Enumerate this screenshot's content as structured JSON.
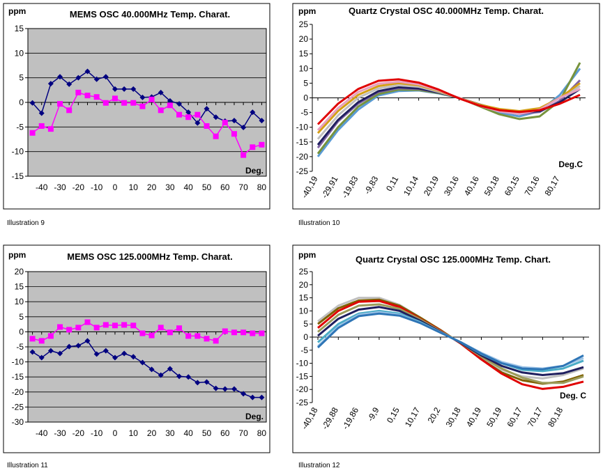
{
  "chart_data": [
    {
      "type": "line",
      "title": "MEMS OSC 40.000MHz Temp. Charat.",
      "ylabel": "ppm",
      "xlabel": "Deg.",
      "caption": "Illustration 9",
      "plot_background": "#c0c0c0",
      "grid": true,
      "categories": [
        null,
        "-40",
        null,
        "-30",
        null,
        "-20",
        null,
        "-10",
        null,
        "0",
        null,
        "10",
        null,
        "20",
        null,
        "30",
        null,
        "40",
        null,
        "50",
        null,
        "60",
        null,
        "70",
        null,
        "80"
      ],
      "ylim": [
        -15,
        15
      ],
      "yticks": [
        -15,
        -10,
        -5,
        0,
        5,
        10,
        15
      ],
      "series": [
        {
          "color": "#000080",
          "marker": "diamond",
          "values": [
            -0.1,
            -2.2,
            3.8,
            5.2,
            3.7,
            5.0,
            6.3,
            4.7,
            5.2,
            2.7,
            2.7,
            2.7,
            1.0,
            1.1,
            2.0,
            0.3,
            -0.3,
            -2.0,
            -4.2,
            -1.3,
            -3.0,
            -3.8,
            -3.7,
            -5.1,
            -2.0,
            -3.7
          ]
        },
        {
          "color": "#ff00ff",
          "marker": "square",
          "values": [
            -6.2,
            -4.8,
            -5.4,
            -0.3,
            -1.6,
            2.0,
            1.4,
            1.1,
            -0.1,
            0.8,
            -0.1,
            -0.1,
            -0.8,
            0.6,
            -1.6,
            -0.6,
            -2.5,
            -3.0,
            -2.5,
            -4.8,
            -6.9,
            -4.1,
            -6.4,
            -10.7,
            -9.1,
            -8.6
          ]
        }
      ]
    },
    {
      "type": "line",
      "title": "Quartz Crystal OSC 40.000MHz Temp. Charat.",
      "ylabel": "ppm",
      "xlabel": "Deg.C",
      "caption": "Illustration 10",
      "plot_background": "#ffffff",
      "grid": false,
      "rotate_labels": true,
      "categories": [
        "-40,19",
        "-29,91",
        "-19,83",
        "-9,83",
        "0,11",
        "10,14",
        "20,19",
        "30,16",
        "40,16",
        "50,18",
        "60,15",
        "70,16",
        "80,17",
        null
      ],
      "ylim": [
        -25,
        25
      ],
      "yticks": [
        -25,
        -20,
        -15,
        -10,
        -5,
        0,
        5,
        10,
        15,
        20,
        25
      ],
      "series": [
        {
          "color": "#5a9bd5",
          "values": [
            -20,
            -11,
            -4,
            0.8,
            2.3,
            2.5,
            1.5,
            0,
            -2.6,
            -5,
            -6.3,
            -4.5,
            1,
            10
          ]
        },
        {
          "color": "#77933c",
          "values": [
            -19,
            -10,
            -3,
            1.3,
            2.8,
            2.7,
            1.6,
            0,
            -2.8,
            -5.6,
            -7.2,
            -6.3,
            -1,
            12
          ]
        },
        {
          "color": "#8064a2",
          "values": [
            -17,
            -8,
            -2,
            2,
            3.3,
            3,
            1.8,
            0,
            -2.3,
            -4.3,
            -5.5,
            -4.8,
            -1,
            6
          ]
        },
        {
          "color": "#1f1f5f",
          "values": [
            -16,
            -7.5,
            -1.5,
            2.3,
            3.6,
            3.2,
            1.8,
            0,
            -2.2,
            -4,
            -5,
            -4.5,
            -1.5,
            3
          ]
        },
        {
          "color": "#bfbfbf",
          "values": [
            -14,
            -6,
            0,
            3.2,
            4.3,
            3.8,
            2,
            0,
            -2.4,
            -4.3,
            -5,
            -3.8,
            0,
            4
          ]
        },
        {
          "color": "#d4a017",
          "values": [
            -12,
            -4.5,
            1,
            4,
            5,
            4.3,
            2.3,
            0,
            -2.3,
            -3.8,
            -4.5,
            -3.5,
            0,
            5
          ]
        },
        {
          "color": "#e6a0c0",
          "values": [
            -11,
            -3.5,
            2,
            4.8,
            5.5,
            4.6,
            2.5,
            0,
            -2.6,
            -4.6,
            -5.5,
            -4,
            0,
            3
          ]
        },
        {
          "color": "#e00000",
          "values": [
            -9,
            -2,
            3,
            5.8,
            6.3,
            5.2,
            2.8,
            -0.2,
            -2.6,
            -4.2,
            -4.8,
            -4.2,
            -2,
            1
          ]
        }
      ]
    },
    {
      "type": "line",
      "title": "MEMS OSC 125.000MHz Temp. Charat.",
      "ylabel": "ppm",
      "xlabel": "Deg.",
      "caption": "Illustration 11",
      "plot_background": "#c0c0c0",
      "grid": true,
      "categories": [
        null,
        "-40",
        null,
        "-30",
        null,
        "-20",
        null,
        "-10",
        null,
        "0",
        null,
        "10",
        null,
        "20",
        null,
        "30",
        null,
        "40",
        null,
        "50",
        null,
        "60",
        null,
        "70",
        null,
        "80"
      ],
      "ylim": [
        -30,
        20
      ],
      "yticks": [
        -30,
        -25,
        -20,
        -15,
        -10,
        -5,
        0,
        5,
        10,
        15,
        20
      ],
      "series": [
        {
          "color": "#000080",
          "marker": "diamond",
          "values": [
            -6.7,
            -8.6,
            -6.3,
            -7.2,
            -4.9,
            -4.6,
            -3.0,
            -7.4,
            -6.3,
            -8.6,
            -7.2,
            -8.3,
            -10.2,
            -12.5,
            -14.4,
            -12.3,
            -14.8,
            -15.0,
            -16.9,
            -16.7,
            -18.8,
            -19.0,
            -19.0,
            -20.6,
            -21.8,
            -21.8
          ]
        },
        {
          "color": "#ff00ff",
          "marker": "square",
          "values": [
            -2.3,
            -3.0,
            -1.4,
            1.6,
            0.7,
            1.4,
            3.2,
            1.4,
            2.3,
            2.1,
            2.3,
            2.1,
            -0.5,
            -1.2,
            1.4,
            -0.2,
            1.2,
            -1.4,
            -1.4,
            -2.3,
            -3.0,
            0.2,
            -0.2,
            -0.2,
            -0.5,
            -0.5
          ]
        }
      ]
    },
    {
      "type": "line",
      "title": "Quartz Crystal OSC 125.000MHz Temp. Chart.",
      "ylabel": "ppm",
      "xlabel": "Deg. C",
      "caption": "Illustration 12",
      "plot_background": "#ffffff",
      "grid": false,
      "rotate_labels": true,
      "categories": [
        "-40,18",
        "-29,88",
        "-19,86",
        "-9,9",
        "0,15",
        "10,17",
        "20,2",
        "30,18",
        "40,19",
        "50,19",
        "60,17",
        "70,17",
        "80,18",
        null
      ],
      "ylim": [
        -25,
        25
      ],
      "yticks": [
        -25,
        -20,
        -15,
        -10,
        -5,
        0,
        5,
        10,
        15,
        20,
        25
      ],
      "series": [
        {
          "color": "#bfbfbf",
          "values": [
            6,
            12,
            15,
            15,
            12.3,
            7.5,
            2.5,
            -2.5,
            -8,
            -12.5,
            -15,
            -15.8,
            -14.5,
            -12
          ]
        },
        {
          "color": "#7f6000",
          "values": [
            5,
            11,
            14,
            14.3,
            12,
            7.5,
            2.7,
            -2.5,
            -8.5,
            -13.5,
            -16.5,
            -17.8,
            -17,
            -14.5
          ]
        },
        {
          "color": "#e00000",
          "values": [
            3.5,
            10,
            13.5,
            13.8,
            11.5,
            7,
            2.5,
            -2.5,
            -8.5,
            -14,
            -18,
            -19.8,
            -19,
            -17
          ]
        },
        {
          "color": "#9c9c5a",
          "values": [
            2,
            8.5,
            12,
            12.5,
            10.8,
            6.8,
            2.3,
            -2.3,
            -7.5,
            -12,
            -15.5,
            -17.5,
            -17.5,
            -15
          ]
        },
        {
          "color": "#1f1f5f",
          "values": [
            0.5,
            7,
            10.5,
            11.5,
            10,
            6.3,
            2,
            -2.2,
            -7,
            -11,
            -13.5,
            -14.5,
            -13.8,
            -11.5
          ]
        },
        {
          "color": "#4bacc6",
          "values": [
            -2,
            5,
            9,
            10,
            9,
            5.8,
            1.8,
            -2,
            -6.5,
            -10,
            -12.5,
            -13,
            -12,
            -9
          ]
        },
        {
          "color": "#9dc3e6",
          "values": [
            -3.5,
            4,
            8.5,
            9.5,
            8.5,
            5.5,
            1.8,
            -2,
            -6,
            -9.5,
            -11.5,
            -12,
            -11,
            -8
          ]
        },
        {
          "color": "#2e75b6",
          "values": [
            -4,
            3.5,
            8,
            9,
            8.2,
            5.4,
            1.7,
            -2,
            -6.3,
            -10,
            -12,
            -12.3,
            -11,
            -7
          ]
        }
      ]
    }
  ]
}
